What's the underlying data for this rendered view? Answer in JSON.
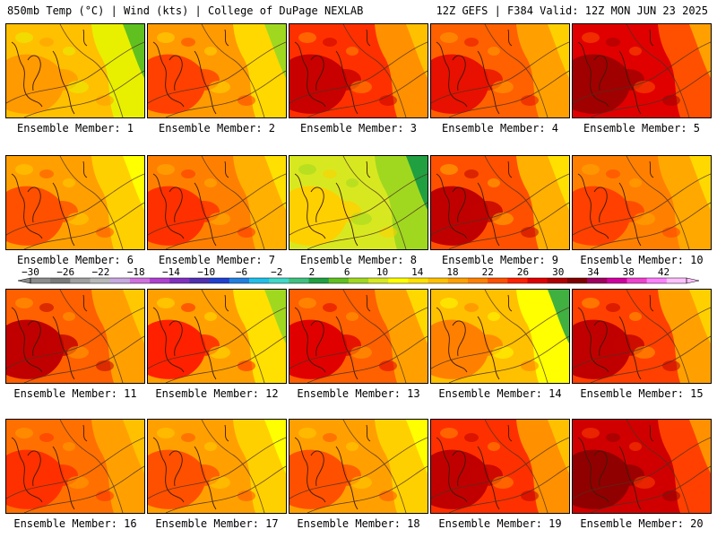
{
  "header": {
    "title_left": "850mb Temp (°C) | Wind (kts) | College of DuPage NEXLAB",
    "title_right": "12Z GEFS | F384 Valid: 12Z MON JUN 23 2025"
  },
  "legend": {
    "ticks": [
      "-30",
      "-26",
      "-22",
      "-18",
      "-14",
      "-10",
      "-6",
      "-2",
      "2",
      "6",
      "10",
      "14",
      "18",
      "22",
      "26",
      "30",
      "34",
      "38",
      "42"
    ],
    "colors": [
      "#8c8c8c",
      "#7a7a7a",
      "#a0a0a0",
      "#b8b8b8",
      "#c8a8e0",
      "#d070e0",
      "#b040d0",
      "#8030c0",
      "#5030b0",
      "#2040d0",
      "#2080e0",
      "#20c0e8",
      "#40d8c8",
      "#40c080",
      "#20a040",
      "#60c020",
      "#a0d820",
      "#d8e820",
      "#ffff00",
      "#ffe000",
      "#ffc000",
      "#ffa000",
      "#ff8000",
      "#ff5000",
      "#ff2000",
      "#e00000",
      "#b00000",
      "#800000",
      "#a00060",
      "#d000a0",
      "#f040d0",
      "#ff80ff",
      "#ffc0ff"
    ]
  },
  "members": [
    {
      "label": "Ensemble Member: 1",
      "palette": [
        "#ff9a00",
        "#ffc000",
        "#e8f000",
        "#60c020"
      ]
    },
    {
      "label": "Ensemble Member: 2",
      "palette": [
        "#ff4000",
        "#ff9a00",
        "#ffd800",
        "#a0d820"
      ]
    },
    {
      "label": "Ensemble Member: 3",
      "palette": [
        "#c80000",
        "#ff3000",
        "#ff9000",
        "#ffc000"
      ]
    },
    {
      "label": "Ensemble Member: 4",
      "palette": [
        "#e81000",
        "#ff6000",
        "#ffa000",
        "#ffd000"
      ]
    },
    {
      "label": "Ensemble Member: 5",
      "palette": [
        "#a00000",
        "#e00000",
        "#ff5000",
        "#ffa000"
      ]
    },
    {
      "label": "Ensemble Member: 6",
      "palette": [
        "#ff5000",
        "#ffa000",
        "#ffd000",
        "#ffff00"
      ]
    },
    {
      "label": "Ensemble Member: 7",
      "palette": [
        "#ff3000",
        "#ff8000",
        "#ffb000",
        "#ffe000"
      ]
    },
    {
      "label": "Ensemble Member: 8",
      "palette": [
        "#ffd000",
        "#d8e820",
        "#a0d820",
        "#20a040"
      ]
    },
    {
      "label": "Ensemble Member: 9",
      "palette": [
        "#c00000",
        "#ff5000",
        "#ffb000",
        "#ffe000"
      ]
    },
    {
      "label": "Ensemble Member: 10",
      "palette": [
        "#ff4000",
        "#ff8000",
        "#ffa800",
        "#ffd800"
      ]
    },
    {
      "label": "Ensemble Member: 11",
      "palette": [
        "#c00000",
        "#ff6000",
        "#ffa000",
        "#ffc800"
      ]
    },
    {
      "label": "Ensemble Member: 12",
      "palette": [
        "#ff2000",
        "#ffa000",
        "#ffe000",
        "#a0d820"
      ]
    },
    {
      "label": "Ensemble Member: 13",
      "palette": [
        "#e00000",
        "#ff6000",
        "#ffa000",
        "#ffd800"
      ]
    },
    {
      "label": "Ensemble Member: 14",
      "palette": [
        "#ff8000",
        "#ffc000",
        "#ffff00",
        "#40b040"
      ]
    },
    {
      "label": "Ensemble Member: 15",
      "palette": [
        "#c00000",
        "#ff4000",
        "#ffa000",
        "#ffd000"
      ]
    },
    {
      "label": "Ensemble Member: 16",
      "palette": [
        "#ff3000",
        "#ff7000",
        "#ffa000",
        "#ffc000"
      ]
    },
    {
      "label": "Ensemble Member: 17",
      "palette": [
        "#ff5000",
        "#ffa000",
        "#ffd000",
        "#ffff00"
      ]
    },
    {
      "label": "Ensemble Member: 18",
      "palette": [
        "#ff5000",
        "#ffa000",
        "#ffd000",
        "#ffff00"
      ]
    },
    {
      "label": "Ensemble Member: 19",
      "palette": [
        "#c00000",
        "#ff3000",
        "#ff9000",
        "#ffc000"
      ]
    },
    {
      "label": "Ensemble Member: 20",
      "palette": [
        "#900000",
        "#d00000",
        "#ff4000",
        "#ff9000"
      ]
    }
  ]
}
